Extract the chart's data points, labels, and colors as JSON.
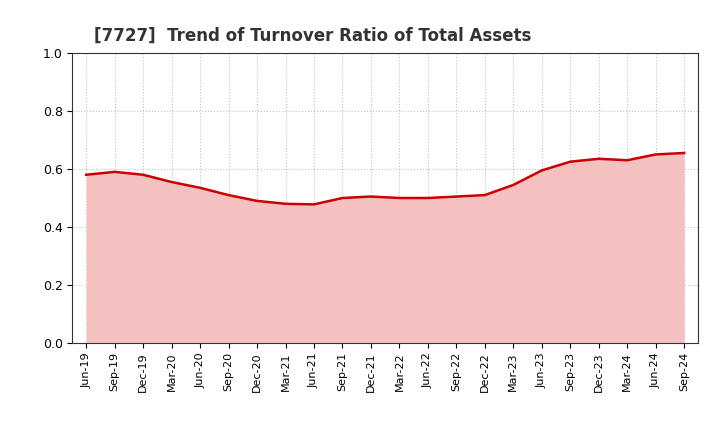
{
  "title": "[7727]  Trend of Turnover Ratio of Total Assets",
  "title_fontsize": 12,
  "ylim": [
    0.0,
    1.0
  ],
  "yticks": [
    0.0,
    0.2,
    0.4,
    0.6,
    0.8,
    1.0
  ],
  "line_color": "#cc0000",
  "fill_color": "#f5c0c0",
  "background_color": "#ffffff",
  "grid_color": "#999999",
  "dates": [
    "Jun-19",
    "Sep-19",
    "Dec-19",
    "Mar-20",
    "Jun-20",
    "Sep-20",
    "Dec-20",
    "Mar-21",
    "Jun-21",
    "Sep-21",
    "Dec-21",
    "Mar-22",
    "Jun-22",
    "Sep-22",
    "Dec-22",
    "Mar-23",
    "Jun-23",
    "Sep-23",
    "Dec-23",
    "Mar-24",
    "Jun-24",
    "Sep-24"
  ],
  "values": [
    0.58,
    0.59,
    0.58,
    0.555,
    0.535,
    0.51,
    0.49,
    0.48,
    0.478,
    0.5,
    0.505,
    0.5,
    0.5,
    0.505,
    0.51,
    0.545,
    0.595,
    0.625,
    0.635,
    0.63,
    0.65,
    0.655
  ]
}
